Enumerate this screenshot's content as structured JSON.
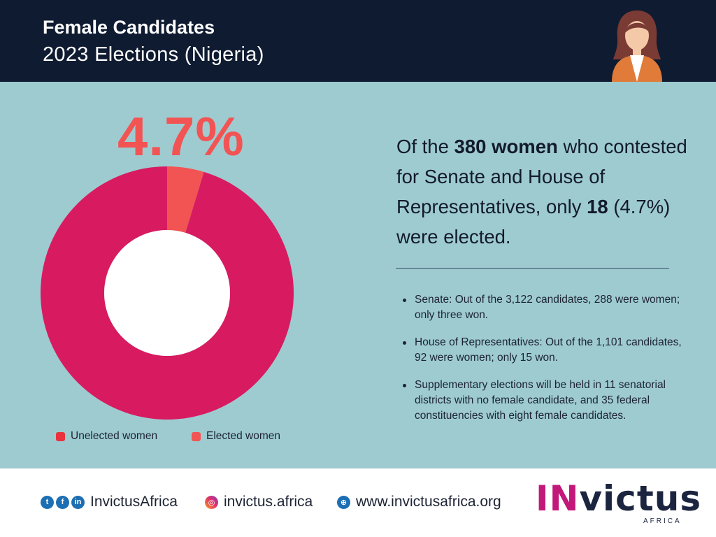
{
  "header": {
    "title": "Female Candidates",
    "subtitle": "2023 Elections (Nigeria)"
  },
  "chart_data": {
    "type": "pie",
    "donut": true,
    "labels": [
      "Unelected women",
      "Elected women"
    ],
    "values": [
      95.3,
      4.7
    ],
    "colors": [
      "#d81b60",
      "#f25454"
    ],
    "center_label": "4.7%",
    "legend_position": "bottom"
  },
  "statement": {
    "p1": "Of the ",
    "b1": "380 women",
    "p2": " who contested for Senate and House of Representatives, only ",
    "b2": "18",
    "p3": " (4.7%) were elected."
  },
  "bullets": [
    "Senate: Out of the 3,122 candidates, 288 were women; only three won.",
    "House of Representatives: Out of the 1,101 candidates, 92 were women; only 15 won.",
    "Supplementary elections will be held in 11 senatorial districts with no female candidate, and 35 federal constituencies with eight female candidates."
  ],
  "footer": {
    "social_handle": "InvictusAfrica",
    "instagram": "invictus.africa",
    "website": "www.invictusafrica.org",
    "icons": [
      "twitter-icon",
      "facebook-icon",
      "linkedin-icon",
      "instagram-icon",
      "globe-icon"
    ]
  },
  "logo": {
    "accent": "IN",
    "rest": "victus",
    "sub": "AFRICA"
  }
}
